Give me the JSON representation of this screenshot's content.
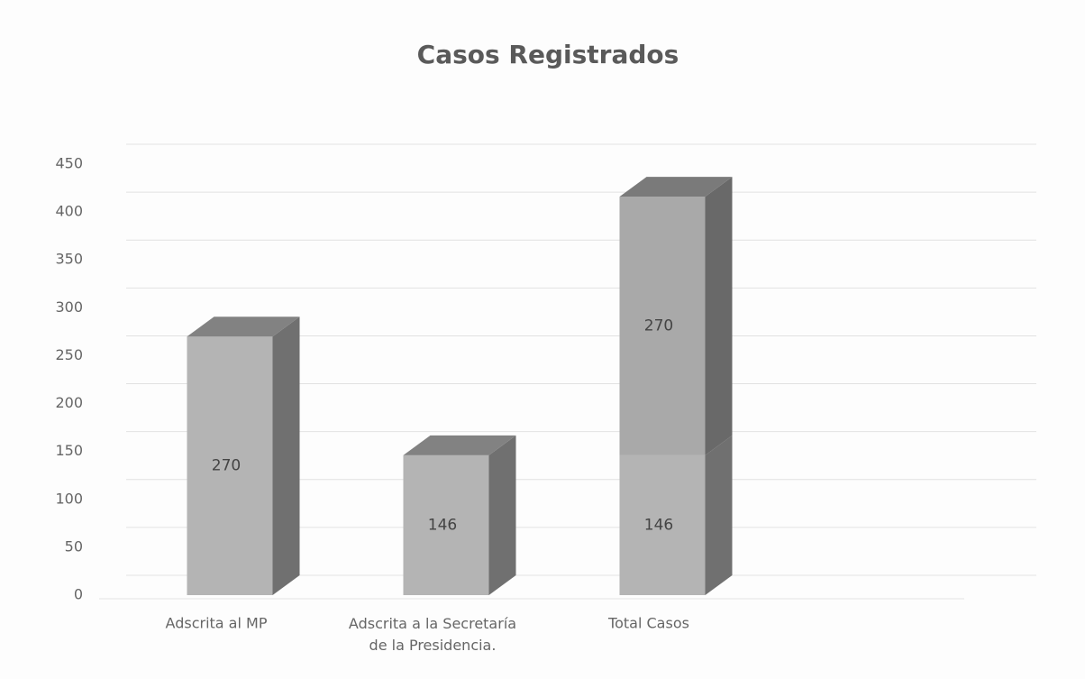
{
  "chart_data": {
    "type": "bar3d-stacked",
    "title": "Casos Registrados",
    "categories": [
      "Adscrita al MP",
      "Adscrita a la Secretaría de la Presidencia.",
      "Total Casos"
    ],
    "series": [
      {
        "color": "#b4b4b4",
        "values": [
          270,
          146,
          146
        ]
      },
      {
        "color": "#a9a9a9",
        "values": [
          null,
          null,
          270
        ]
      }
    ],
    "ylim": [
      0,
      450
    ],
    "yticks": [
      0,
      50,
      100,
      150,
      200,
      250,
      300,
      350,
      400,
      450
    ],
    "grid": true
  }
}
